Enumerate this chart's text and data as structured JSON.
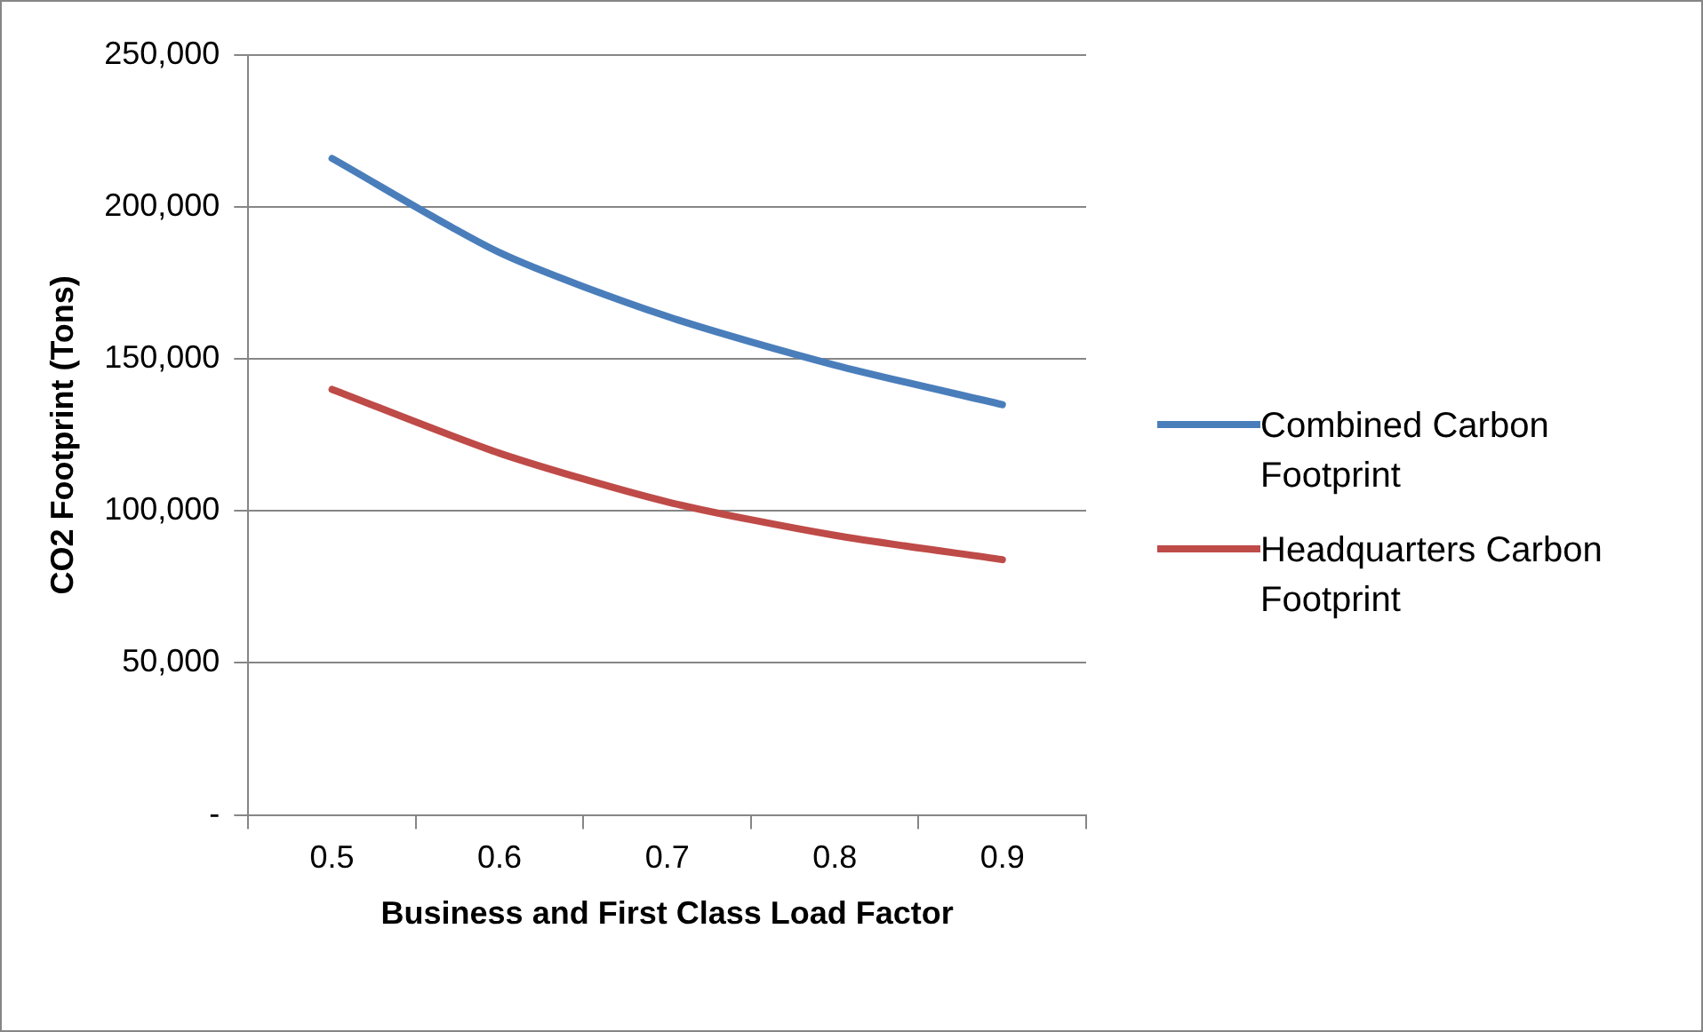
{
  "chart_data": {
    "type": "line",
    "xlabel": "Business and First Class Load Factor",
    "ylabel": "CO2 Footprint (Tons)",
    "categories": [
      "0.5",
      "0.6",
      "0.7",
      "0.8",
      "0.9"
    ],
    "series": [
      {
        "name": "Combined Carbon Footprint",
        "color": "#4a7ebb",
        "values": [
          216000,
          185000,
          164000,
          148000,
          135000
        ]
      },
      {
        "name": "Headquarters Carbon Footprint",
        "color": "#be4b48",
        "values": [
          140000,
          119000,
          103000,
          92000,
          84000
        ]
      }
    ],
    "ylim": [
      0,
      250000
    ],
    "yticks": [
      {
        "value": 0,
        "label": "-"
      },
      {
        "value": 50000,
        "label": "50,000"
      },
      {
        "value": 100000,
        "label": "100,000"
      },
      {
        "value": 150000,
        "label": "150,000"
      },
      {
        "value": 200000,
        "label": "200,000"
      },
      {
        "value": 250000,
        "label": "250,000"
      }
    ],
    "grid": "y",
    "legend": "right",
    "marker": "none",
    "line_style": "solid"
  }
}
